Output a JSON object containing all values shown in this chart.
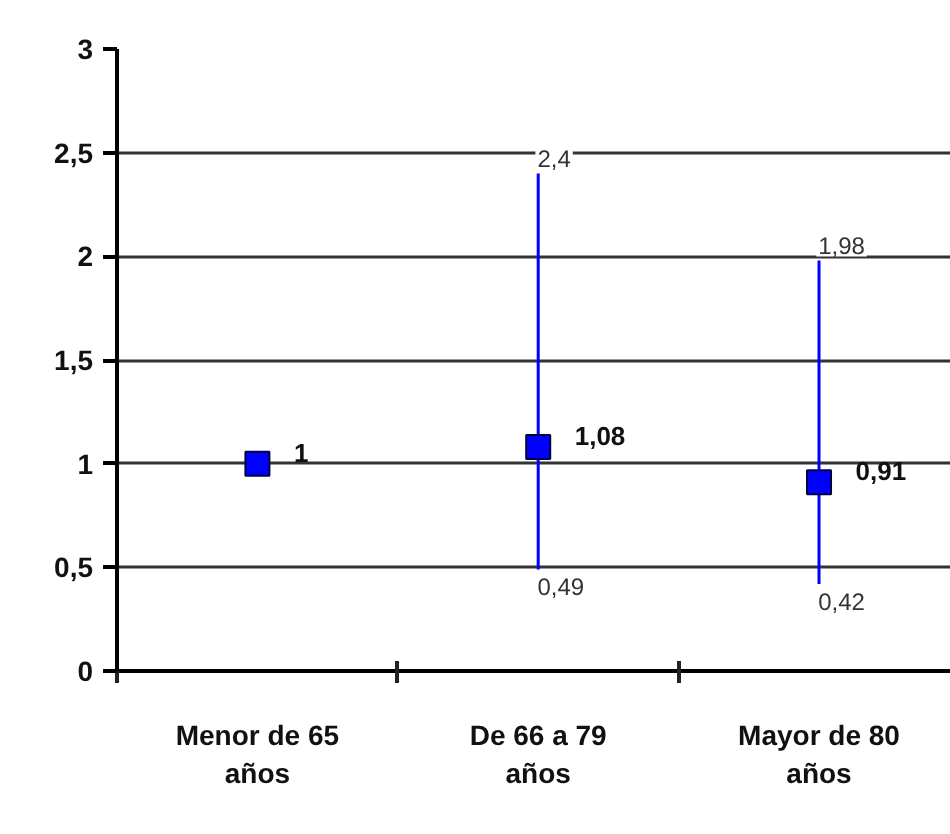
{
  "chart_data": {
    "type": "scatter",
    "categories": [
      "Menor de 65 años",
      "De 66 a 79 años",
      "Mayor de 80 años"
    ],
    "series": [
      {
        "color": "#0000ff",
        "values": [
          1,
          1.08,
          0.91
        ],
        "errors": [
          null,
          [
            0.49,
            2.4
          ],
          [
            0.42,
            1.98
          ]
        ],
        "value_labels": [
          "1",
          "1,08",
          "0,91"
        ]
      }
    ],
    "marker": "square",
    "grid": "y",
    "ylim": [
      0,
      3
    ],
    "yticks": [
      0,
      {
        "value": 0.5,
        "label": "0,5"
      },
      1,
      {
        "value": 1.5,
        "label": "1,5"
      },
      2,
      {
        "value": 2.5,
        "label": "2,5"
      },
      3
    ],
    "annotations": [
      {
        "text": "2,4",
        "x": "De 66 a 79 años",
        "y": 2.4
      },
      {
        "text": "0,49",
        "x": "De 66 a 79 años",
        "y": 0.49
      },
      {
        "text": "1,98",
        "x": "Mayor de 80 años",
        "y": 1.98
      },
      {
        "text": "0,42",
        "x": "Mayor de 80 años",
        "y": 0.42
      }
    ]
  }
}
